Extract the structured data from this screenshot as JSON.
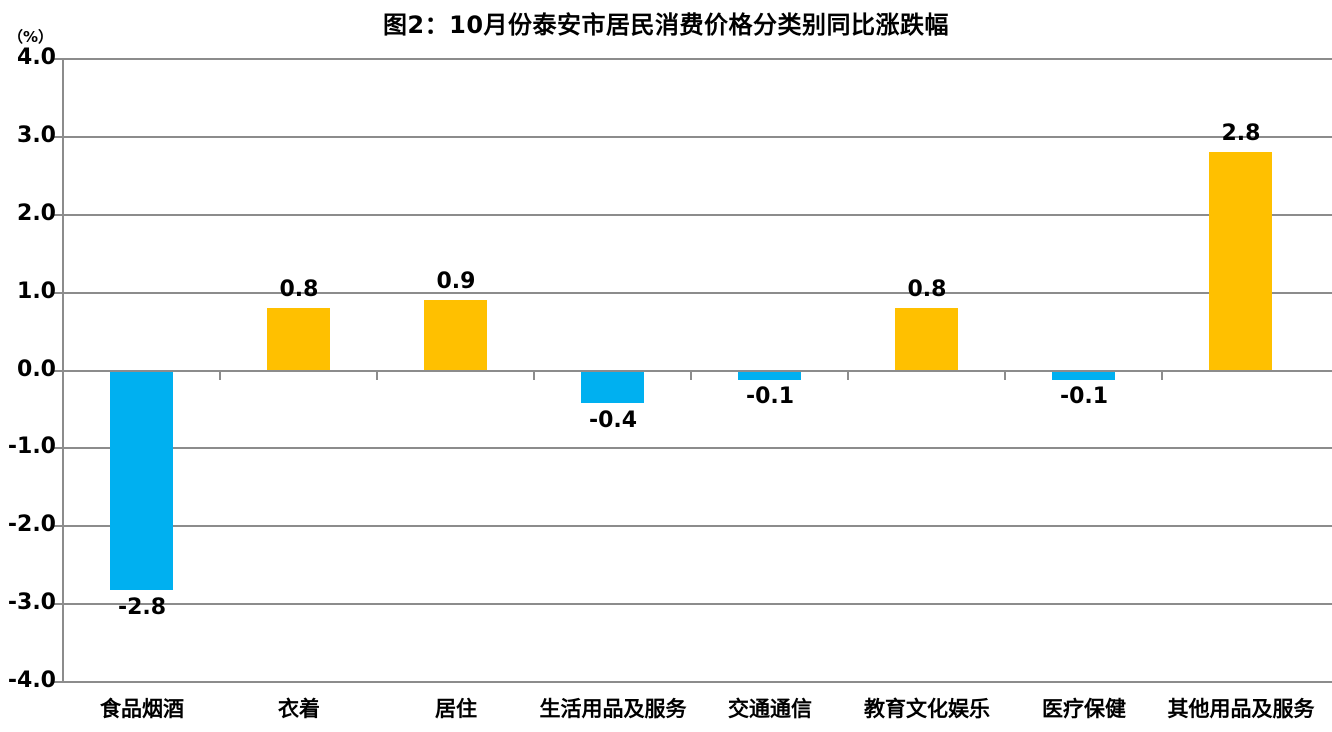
{
  "chart": {
    "title": "图2：10月份泰安市居民消费价格分类别同比涨跌幅",
    "unit_label": "（%）"
  },
  "chart_data": {
    "type": "bar",
    "title": "图2：10月份泰安市居民消费价格分类别同比涨跌幅",
    "unit": "%",
    "categories": [
      "食品烟酒",
      "衣着",
      "居住",
      "生活用品及服务",
      "交通通信",
      "教育文化娱乐",
      "医疗保健",
      "其他用品及服务"
    ],
    "values": [
      -2.8,
      0.8,
      0.9,
      -0.4,
      -0.1,
      0.8,
      -0.1,
      2.8
    ],
    "value_labels": [
      "-2.8",
      "0.8",
      "0.9",
      "-0.4",
      "-0.1",
      "0.8",
      "-0.1",
      "2.8"
    ],
    "ylim": [
      -4.0,
      4.0
    ],
    "y_tick_labels": [
      "4.0",
      "3.0",
      "2.0",
      "1.0",
      "0.0",
      "-1.0",
      "-2.0",
      "-3.0",
      "-4.0"
    ],
    "y_tick_values": [
      4,
      3,
      2,
      1,
      0,
      -1,
      -2,
      -3,
      -4
    ],
    "grid": true,
    "legend_position": "none",
    "colors": {
      "positive_bar": "#FFC000",
      "negative_bar": "#00B0F0",
      "gridline": "#8C8C8C",
      "axis": "#8C8C8C",
      "text": "#000000",
      "background": "#FFFFFF"
    }
  }
}
